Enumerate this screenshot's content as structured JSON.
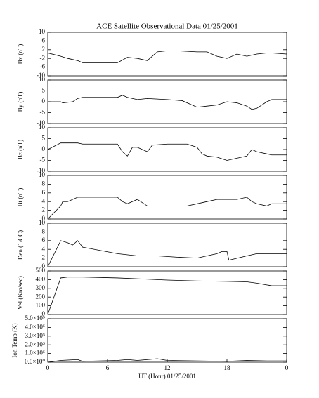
{
  "title": "ACE Satellite Observational Data   01/25/2001",
  "chart_data": [
    {
      "type": "line",
      "ylabel": "Bx (nT)",
      "color": "#000000",
      "xlim": [
        0,
        24
      ],
      "ylim": [
        -10,
        10
      ],
      "yticks": [
        -10,
        -6,
        -2,
        2,
        6,
        10
      ],
      "x": [
        0,
        1.3,
        2,
        3,
        3.5,
        7,
        8,
        9,
        10,
        10.5,
        11,
        12,
        13,
        15,
        16,
        17,
        18,
        19,
        20,
        21,
        22,
        22.5,
        24
      ],
      "values": [
        0.5,
        -1,
        -2,
        -3,
        -4,
        -4,
        -1.5,
        -2,
        -3,
        -1,
        1,
        1.5,
        1.5,
        1,
        1,
        -1,
        -2,
        0,
        -1,
        0,
        0.5,
        0.5,
        0
      ]
    },
    {
      "type": "line",
      "ylabel": "By (nT)",
      "color": "#000000",
      "xlim": [
        0,
        24
      ],
      "ylim": [
        -10,
        10
      ],
      "yticks": [
        -10,
        -5,
        0,
        5,
        10
      ],
      "x": [
        0,
        1.3,
        1.5,
        2.5,
        3,
        3.5,
        7,
        7.5,
        8,
        9,
        10,
        12,
        13.5,
        15,
        16,
        17,
        18,
        19,
        20,
        20.5,
        21,
        22,
        22.5,
        24
      ],
      "values": [
        0,
        0,
        -0.5,
        0,
        1.5,
        2,
        2,
        3,
        2,
        1,
        1.5,
        1,
        0.5,
        -2.5,
        -2,
        -1.5,
        0,
        -0.5,
        -2,
        -3.5,
        -3,
        0,
        1,
        1
      ]
    },
    {
      "type": "line",
      "ylabel": "Bz (nT)",
      "color": "#000000",
      "xlim": [
        0,
        24
      ],
      "ylim": [
        -10,
        10
      ],
      "yticks": [
        -10,
        -5,
        0,
        5,
        10
      ],
      "x": [
        0,
        1.3,
        3,
        3.5,
        7,
        7.5,
        8,
        8.5,
        9,
        10,
        10.5,
        12,
        14,
        15,
        15.5,
        16,
        17,
        18,
        19,
        20,
        20.5,
        21,
        22,
        22.5,
        24
      ],
      "values": [
        0,
        3,
        3,
        2.5,
        2.5,
        -1,
        -3,
        1,
        1,
        -1,
        2,
        2.5,
        2.5,
        1,
        -2,
        -3,
        -3.5,
        -5,
        -4,
        -3,
        0,
        -1,
        -2,
        -2.5,
        -2.5
      ]
    },
    {
      "type": "line",
      "ylabel": "Bt (nT)",
      "color": "#000000",
      "xlim": [
        0,
        24
      ],
      "ylim": [
        0,
        10
      ],
      "yticks": [
        0,
        2,
        4,
        6,
        8,
        10
      ],
      "x": [
        0,
        1.3,
        1.5,
        2,
        3,
        3.5,
        7,
        7.5,
        8,
        9,
        10,
        11,
        12,
        14,
        15,
        16,
        17,
        18,
        19,
        20,
        20.5,
        21,
        22,
        22.5,
        24
      ],
      "values": [
        0,
        3,
        4,
        4,
        5,
        5,
        5,
        4,
        3.5,
        4.5,
        3,
        3,
        3,
        3,
        3.5,
        4,
        4.5,
        4.5,
        4.5,
        5,
        4,
        3.5,
        3,
        3.5,
        3.5
      ]
    },
    {
      "type": "line",
      "ylabel": "Den (1/CC)",
      "color": "#000000",
      "xlim": [
        0,
        24
      ],
      "ylim": [
        0,
        10
      ],
      "yticks": [
        0,
        2,
        4,
        6,
        8,
        10
      ],
      "x": [
        0,
        1.3,
        2,
        2.5,
        3,
        3.5,
        7,
        9,
        11,
        13,
        15,
        17,
        17.5,
        18,
        18.2,
        20,
        21,
        22,
        22.5,
        24
      ],
      "values": [
        0,
        6,
        5.5,
        5,
        6,
        4.5,
        3,
        2.5,
        2.5,
        2.2,
        2,
        3,
        3.5,
        3.5,
        1.5,
        2.5,
        3,
        3,
        3,
        3
      ]
    },
    {
      "type": "line",
      "ylabel": "Vel (Km/sec)",
      "color": "#000000",
      "xlim": [
        0,
        24
      ],
      "ylim": [
        0,
        500
      ],
      "yticks": [
        0,
        100,
        200,
        300,
        400,
        500
      ],
      "x": [
        0,
        1.3,
        2,
        3.5,
        7,
        10,
        12,
        15,
        18,
        20,
        21,
        22,
        22.5,
        24
      ],
      "values": [
        0,
        420,
        430,
        430,
        420,
        405,
        395,
        385,
        380,
        375,
        360,
        340,
        330,
        330
      ]
    },
    {
      "type": "line",
      "ylabel": "Ion Temp (K)",
      "xlabel": "UT (Hour)   01/25/2001",
      "color": "#000000",
      "xlim": [
        0,
        24
      ],
      "ylim": [
        0,
        500000
      ],
      "yticks": [
        {
          "value": 0,
          "label": "0.0×10⁰"
        },
        {
          "value": 100000,
          "label": "1.0×10⁵"
        },
        {
          "value": 200000,
          "label": "2.0×10⁵"
        },
        {
          "value": 300000,
          "label": "3.0×10⁵"
        },
        {
          "value": 400000,
          "label": "4.0×10⁵"
        },
        {
          "value": 500000,
          "label": "5.0×10⁵"
        }
      ],
      "xticks": [
        0,
        6,
        12,
        18,
        {
          "value": 24,
          "label": "0"
        }
      ],
      "x": [
        0,
        1.3,
        3,
        3.5,
        7,
        8,
        9,
        11,
        12,
        15,
        18,
        20,
        22,
        24
      ],
      "values": [
        0,
        20000,
        30000,
        10000,
        20000,
        30000,
        20000,
        40000,
        20000,
        15000,
        10000,
        20000,
        15000,
        15000
      ]
    }
  ]
}
